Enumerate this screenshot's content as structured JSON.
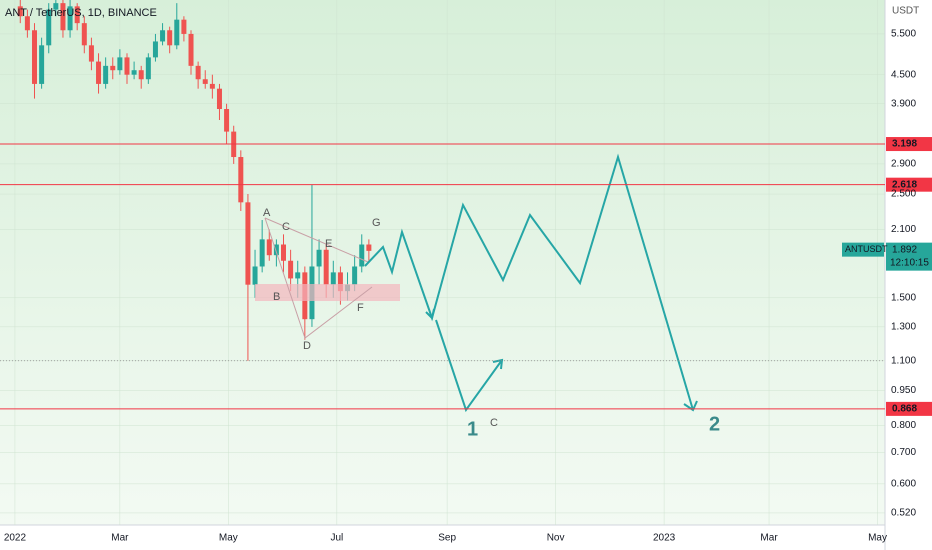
{
  "chart_data": {
    "type": "candlestick",
    "title": "ANT / TetherUS, 1D, BINANCE",
    "currency": "USDT",
    "symbol": "ANTUSDT",
    "last_price": 1.892,
    "countdown": "12:10:15",
    "log_scale": true,
    "grid": true,
    "up_color": "#26a69a",
    "down_color": "#ef5350",
    "level_color": "#f23645",
    "levels": [
      3.198,
      2.618,
      0.868
    ],
    "support_line": 1.1,
    "xlim": [
      -8.4,
      489.2
    ],
    "xticks": [
      {
        "value": 0,
        "label": "2022"
      },
      {
        "value": 59,
        "label": "Mar"
      },
      {
        "value": 120,
        "label": "May"
      },
      {
        "value": 181,
        "label": "Jul"
      },
      {
        "value": 243,
        "label": "Sep"
      },
      {
        "value": 304,
        "label": "Nov"
      },
      {
        "value": 365,
        "label": "2023"
      },
      {
        "value": 424,
        "label": "Mar"
      },
      {
        "value": 485,
        "label": "May"
      }
    ],
    "ylim": [
      0.49,
      6.5
    ],
    "yticks": [
      {
        "value": 5.5,
        "label": "5.500"
      },
      {
        "value": 4.5,
        "label": "4.500"
      },
      {
        "value": 3.9,
        "label": "3.900"
      },
      {
        "value": 2.9,
        "label": "2.900"
      },
      {
        "value": 2.5,
        "label": "2.500"
      },
      {
        "value": 2.1,
        "label": "2.100"
      },
      {
        "value": 1.5,
        "label": "1.500"
      },
      {
        "value": 1.3,
        "label": "1.300"
      },
      {
        "value": 1.1,
        "label": "1.100"
      },
      {
        "value": 0.95,
        "label": "0.950"
      },
      {
        "value": 0.8,
        "label": "0.800"
      },
      {
        "value": 0.7,
        "label": "0.700"
      },
      {
        "value": 0.6,
        "label": "0.600"
      },
      {
        "value": 0.52,
        "label": "0.520"
      }
    ],
    "annotations": [
      "A",
      "B",
      "C",
      "D",
      "E",
      "F",
      "G",
      "1",
      "C",
      "2"
    ],
    "x": [
      3,
      7,
      11,
      15,
      19,
      23,
      27,
      31,
      35,
      39,
      43,
      47,
      51,
      55,
      59,
      63,
      67,
      71,
      75,
      79,
      83,
      87,
      91,
      95,
      99,
      103,
      107,
      111,
      115,
      119,
      123,
      127,
      131,
      135,
      139,
      143,
      147,
      151,
      155,
      159,
      163,
      167,
      171,
      175,
      179,
      183,
      187,
      191,
      195,
      199
    ],
    "open": [
      6.3,
      6.0,
      5.6,
      4.3,
      5.2,
      6.2,
      6.4,
      5.6,
      6.3,
      5.8,
      5.2,
      4.8,
      4.3,
      4.7,
      4.6,
      4.9,
      4.5,
      4.6,
      4.4,
      4.9,
      5.3,
      5.6,
      5.2,
      5.9,
      5.5,
      4.7,
      4.4,
      4.3,
      4.2,
      3.8,
      3.4,
      3.0,
      2.4,
      1.6,
      1.75,
      2.0,
      1.85,
      1.95,
      1.8,
      1.65,
      1.7,
      1.35,
      1.75,
      1.9,
      1.6,
      1.7,
      1.55,
      1.6,
      1.75,
      1.95
    ],
    "high": [
      6.5,
      6.2,
      5.8,
      5.4,
      6.4,
      6.5,
      6.5,
      6.5,
      6.4,
      6.0,
      5.4,
      5.0,
      4.9,
      4.9,
      5.1,
      5.0,
      4.8,
      4.7,
      5.0,
      5.5,
      5.8,
      5.7,
      6.4,
      6.0,
      5.6,
      4.8,
      4.6,
      4.5,
      4.3,
      3.9,
      3.5,
      3.1,
      2.5,
      1.9,
      2.2,
      2.1,
      2.0,
      2.05,
      1.9,
      1.8,
      1.75,
      2.62,
      2.0,
      1.95,
      1.8,
      1.75,
      1.7,
      1.85,
      2.05,
      2.0
    ],
    "low": [
      5.8,
      5.4,
      4.0,
      4.2,
      5.0,
      6.0,
      5.4,
      5.4,
      5.6,
      5.0,
      4.6,
      4.1,
      4.2,
      4.4,
      4.5,
      4.3,
      4.4,
      4.2,
      4.3,
      4.8,
      5.2,
      5.0,
      5.1,
      5.3,
      4.5,
      4.2,
      4.2,
      4.0,
      3.6,
      3.2,
      2.9,
      2.3,
      1.1,
      1.5,
      1.7,
      1.8,
      1.75,
      1.7,
      1.55,
      1.5,
      1.22,
      1.3,
      1.6,
      1.5,
      1.5,
      1.45,
      1.48,
      1.55,
      1.7,
      1.8
    ],
    "close": [
      6.0,
      5.6,
      4.3,
      5.2,
      6.2,
      6.4,
      5.6,
      6.3,
      5.8,
      5.2,
      4.8,
      4.3,
      4.7,
      4.6,
      4.9,
      4.5,
      4.6,
      4.4,
      4.9,
      5.3,
      5.6,
      5.2,
      5.9,
      5.5,
      4.7,
      4.4,
      4.3,
      4.2,
      3.8,
      3.4,
      3.0,
      2.4,
      1.6,
      1.75,
      2.0,
      1.85,
      1.95,
      1.8,
      1.65,
      1.7,
      1.35,
      1.75,
      1.9,
      1.6,
      1.7,
      1.55,
      1.6,
      1.75,
      1.95,
      1.89
    ]
  }
}
